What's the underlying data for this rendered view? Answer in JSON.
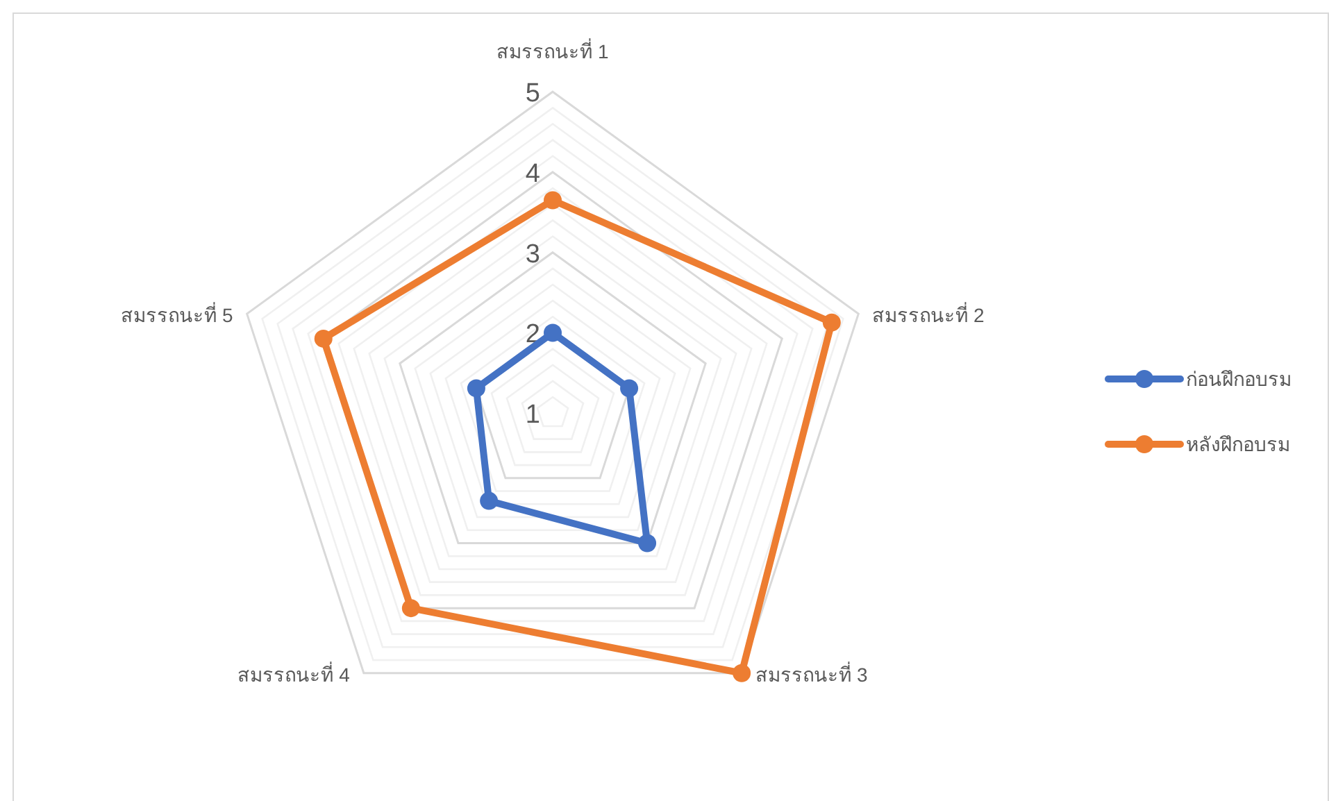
{
  "chart_data": {
    "type": "radar",
    "categories": [
      "สมรรถนะที่ 1",
      "สมรรถนะที่ 2",
      "สมรรถนะที่ 3",
      "สมรรถนะที่ 4",
      "สมรรถนะที่ 5"
    ],
    "series": [
      {
        "name": "ก่อนฝึกอบรม",
        "color": "#4472c4",
        "values": [
          2.0,
          2.0,
          3.0,
          2.35,
          2.0
        ]
      },
      {
        "name": "หลังฝึกอบรม",
        "color": "#ed7d31",
        "values": [
          3.65,
          4.65,
          5.0,
          4.0,
          4.0
        ]
      }
    ],
    "ylim": [
      1,
      5
    ],
    "yticks": [
      1,
      2,
      3,
      4,
      5
    ],
    "marker": "circle",
    "line_style": "solid",
    "grid": true,
    "legend": "right"
  }
}
